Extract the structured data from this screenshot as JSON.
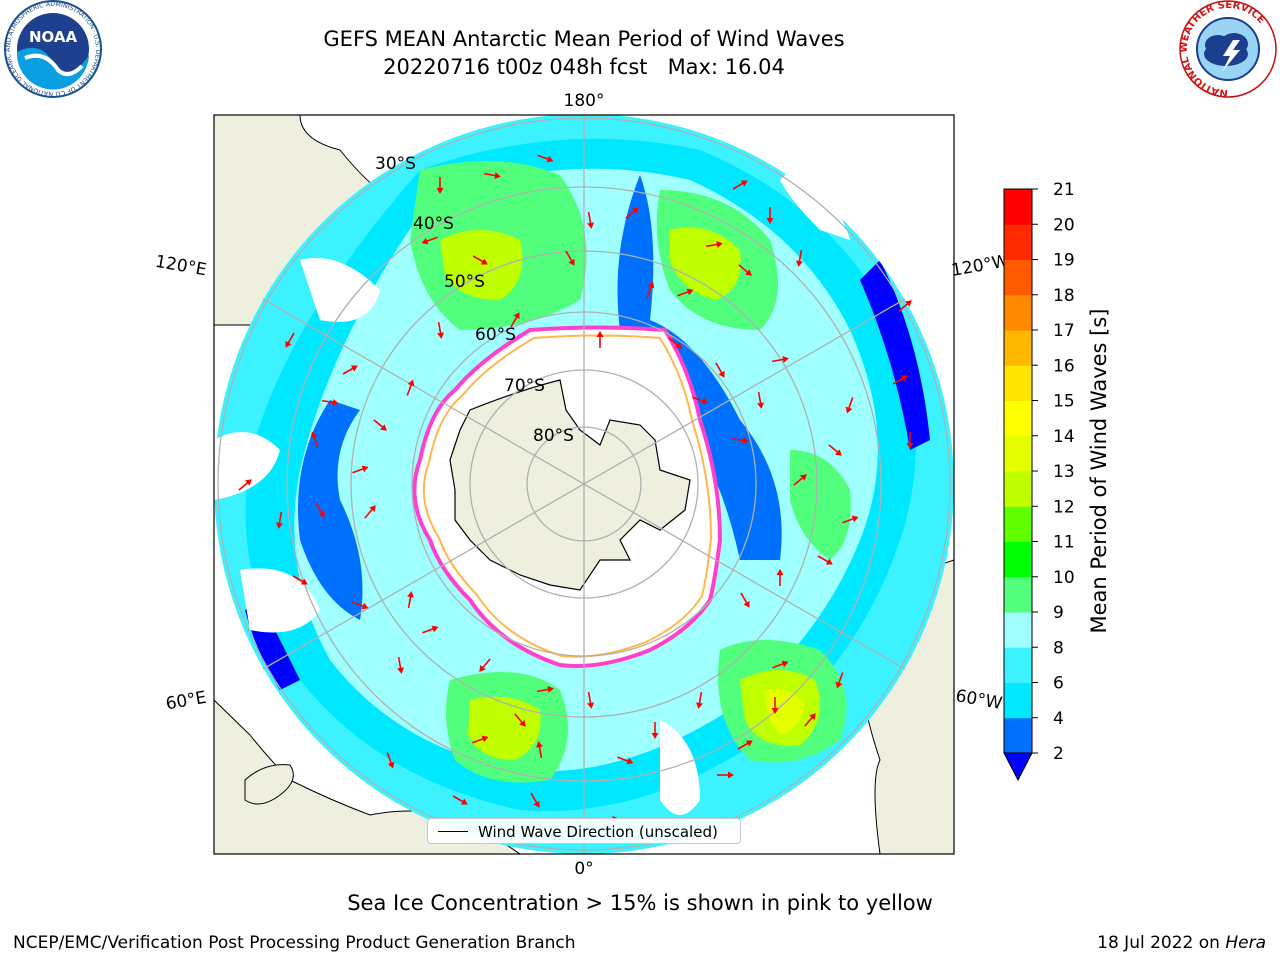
{
  "title": {
    "line1": "GEFS MEAN Antarctic Mean Period of Wind Waves",
    "line2": "20220716 t00z 048h fcst   Max: 16.04"
  },
  "logos": {
    "noaa_text": "NOAA",
    "noaa_ring": "NATIONAL OCEANIC AND ATMOSPHERIC ADMINISTRATION · U.S. DEPARTMENT OF COMMERCE",
    "nws_ring": "NATIONAL WEATHER SERVICE"
  },
  "map": {
    "lon_labels": {
      "top": "180°",
      "bottom": "0°",
      "upper_left": "120°E",
      "upper_right": "120°W",
      "lower_left": "60°E",
      "lower_right": "60°W"
    },
    "lat_labels": [
      "30°S",
      "40°S",
      "50°S",
      "60°S",
      "70°S",
      "80°S"
    ],
    "legend": "Wind Wave Direction (unscaled)",
    "colors": {
      "land": "#efefdf",
      "ice_edge": "#ff3fcf",
      "arrows": "#ff0000"
    }
  },
  "colorbar": {
    "label": "Mean Period of Wind Waves [s]",
    "ticks": [
      "2",
      "4",
      "6",
      "8",
      "9",
      "10",
      "11",
      "12",
      "13",
      "14",
      "15",
      "16",
      "17",
      "18",
      "19",
      "20",
      "21"
    ],
    "colors": [
      "#0070ff",
      "#00e8ff",
      "#3cf2ff",
      "#a0ffff",
      "#52ff7c",
      "#00ff00",
      "#60ff00",
      "#c0ff00",
      "#e4ff00",
      "#ffff00",
      "#ffe600",
      "#ffb800",
      "#ff8a00",
      "#ff5a00",
      "#ff2a00",
      "#ff0000"
    ],
    "under_color": "#0000ff"
  },
  "footer": {
    "ice_note": "Sea Ice Concentration > 15% is shown in pink to yellow",
    "left": "NCEP/EMC/Verification Post Processing Product Generation Branch",
    "right_date": "18 Jul 2022 on ",
    "right_host": "Hera"
  }
}
